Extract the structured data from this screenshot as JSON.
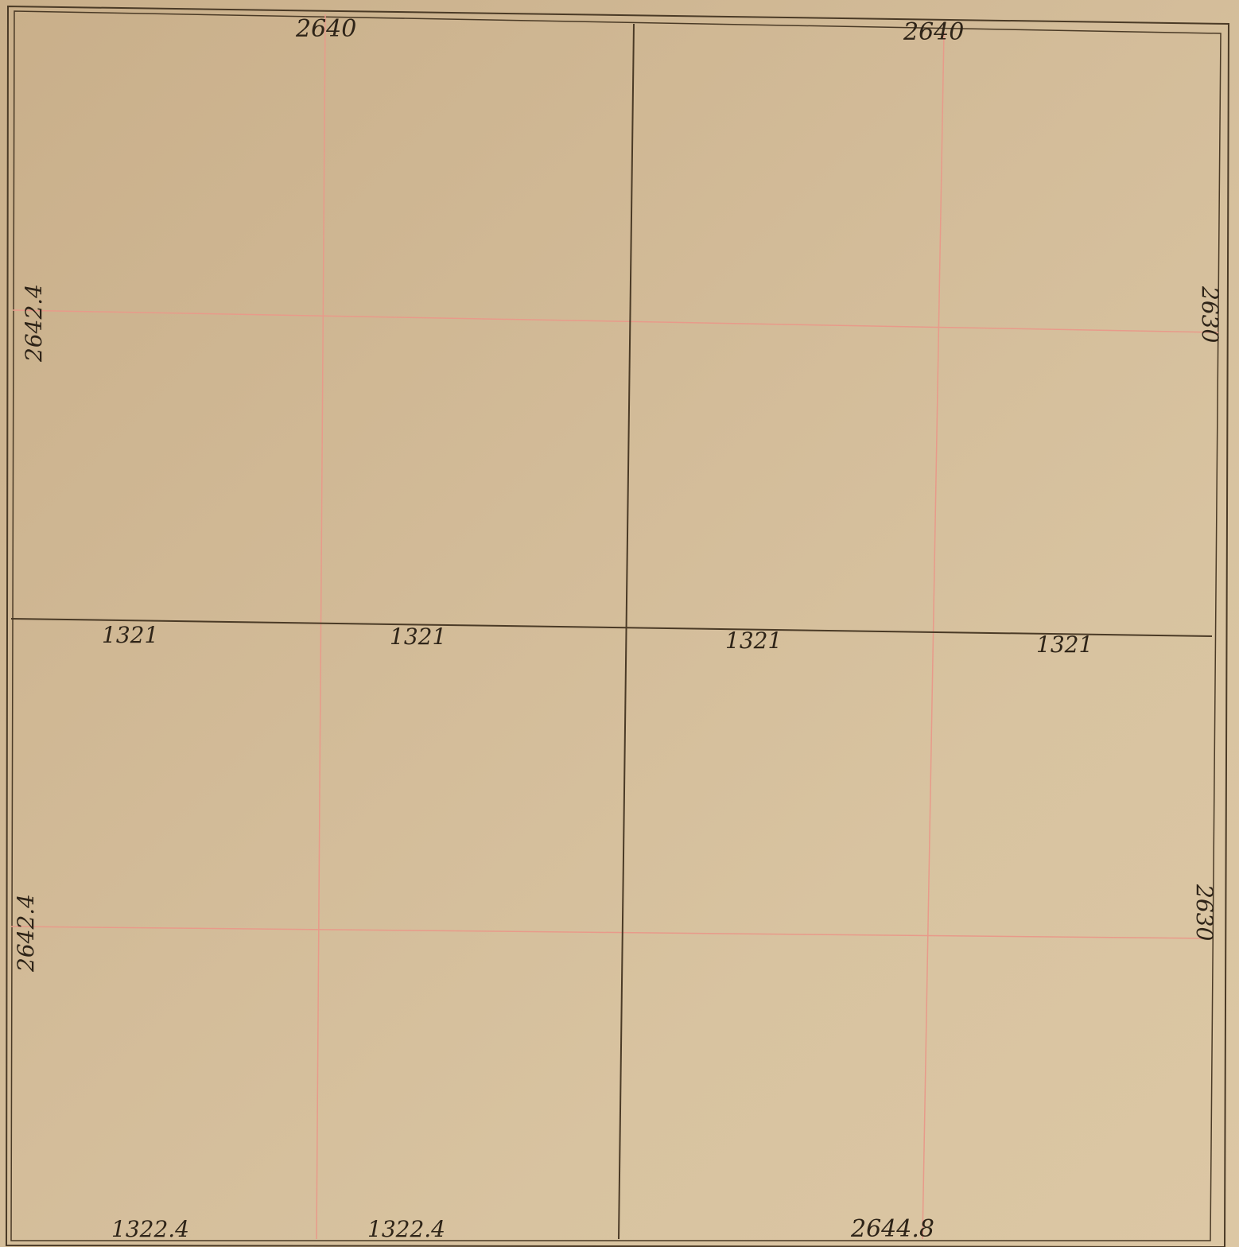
{
  "plat": {
    "top_left": "2640",
    "top_right": "2640",
    "left_upper": "2642.4",
    "left_lower": "2642.4",
    "right_upper": "2630",
    "right_lower": "2630",
    "mid_1": "1321",
    "mid_2": "1321",
    "mid_3": "1321",
    "mid_4": "1321",
    "bottom_1": "1322.4",
    "bottom_2": "1322.4",
    "bottom_right": "2644.8"
  },
  "colors": {
    "paper": "#d3bc99",
    "ink": "#3a2c1a",
    "red_rule": "#e89a8a"
  }
}
